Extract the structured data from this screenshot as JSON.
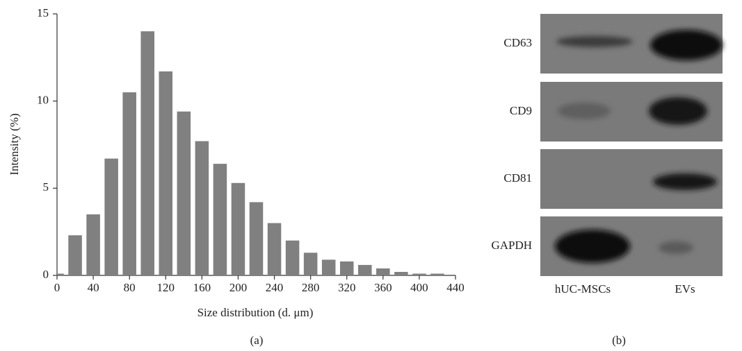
{
  "chart_data": {
    "type": "bar",
    "label": "(a)",
    "xlabel": "Size distribution (d. μm)",
    "ylabel": "Intensity (%)",
    "x": [
      0,
      20,
      40,
      60,
      80,
      100,
      120,
      140,
      160,
      180,
      200,
      220,
      240,
      260,
      280,
      300,
      320,
      340,
      360,
      380,
      400,
      420
    ],
    "values": [
      0.1,
      2.3,
      3.5,
      6.7,
      10.5,
      14.0,
      11.7,
      9.4,
      7.7,
      6.4,
      5.3,
      4.2,
      3.0,
      2.0,
      1.3,
      0.9,
      0.8,
      0.6,
      0.4,
      0.2,
      0.1,
      0.1
    ],
    "color": "#808080",
    "xlim": [
      0,
      440
    ],
    "xticks": [
      0,
      40,
      80,
      120,
      160,
      200,
      240,
      280,
      320,
      360,
      400,
      440
    ],
    "ylim": [
      0,
      15
    ],
    "yticks": [
      0,
      5,
      10,
      15
    ]
  },
  "blot": {
    "label": "(b)",
    "rows": [
      "CD63",
      "CD9",
      "CD81",
      "GAPDH"
    ],
    "lanes": [
      "hUC-MSCs",
      "EVs"
    ]
  }
}
